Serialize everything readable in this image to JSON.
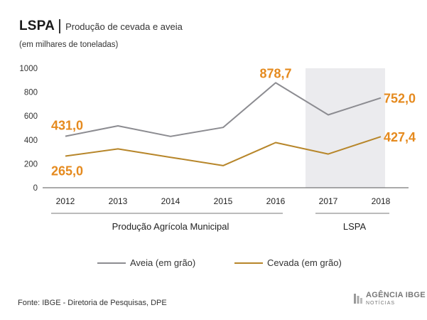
{
  "header": {
    "title": "LSPA",
    "subtitle": "Produção de cevada e aveia",
    "unit": "(em milhares de toneladas)"
  },
  "chart_data": {
    "type": "line",
    "x": [
      "2012",
      "2013",
      "2014",
      "2015",
      "2016",
      "2017",
      "2018"
    ],
    "ylim": [
      0,
      1000
    ],
    "yticks": [
      "0",
      "200",
      "400",
      "600",
      "800",
      "1000"
    ],
    "series": [
      {
        "name": "Aveia (em grão)",
        "color": "#8c8c91",
        "values": [
          431.0,
          518,
          430,
          505,
          878.7,
          610,
          752.0
        ]
      },
      {
        "name": "Cevada (em grão)",
        "color": "#b7862a",
        "values": [
          265.0,
          325,
          255,
          185,
          378,
          282,
          427.4
        ]
      }
    ],
    "data_labels": [
      {
        "series": 0,
        "index": 0,
        "text": "431,0"
      },
      {
        "series": 1,
        "index": 0,
        "text": "265,0"
      },
      {
        "series": 0,
        "index": 4,
        "text": "878,7"
      },
      {
        "series": 0,
        "index": 6,
        "text": "752,0"
      },
      {
        "series": 1,
        "index": 6,
        "text": "427,4"
      }
    ],
    "label_color": "#e58a1e",
    "groups": [
      {
        "label": "Produção Agrícola Municipal",
        "from": "2012",
        "to": "2016"
      },
      {
        "label": "LSPA",
        "from": "2017",
        "to": "2018",
        "shaded": true
      }
    ],
    "grid": false
  },
  "legend": {
    "items": [
      {
        "label": "Aveia (em grão)",
        "color": "#8c8c91"
      },
      {
        "label": "Cevada (em grão)",
        "color": "#b7862a"
      }
    ]
  },
  "footer": {
    "source": "Fonte: IBGE - Diretoria de Pesquisas, DPE",
    "logo_main": "AGÊNCIA IBGE",
    "logo_sub": "NOTÍCIAS"
  }
}
